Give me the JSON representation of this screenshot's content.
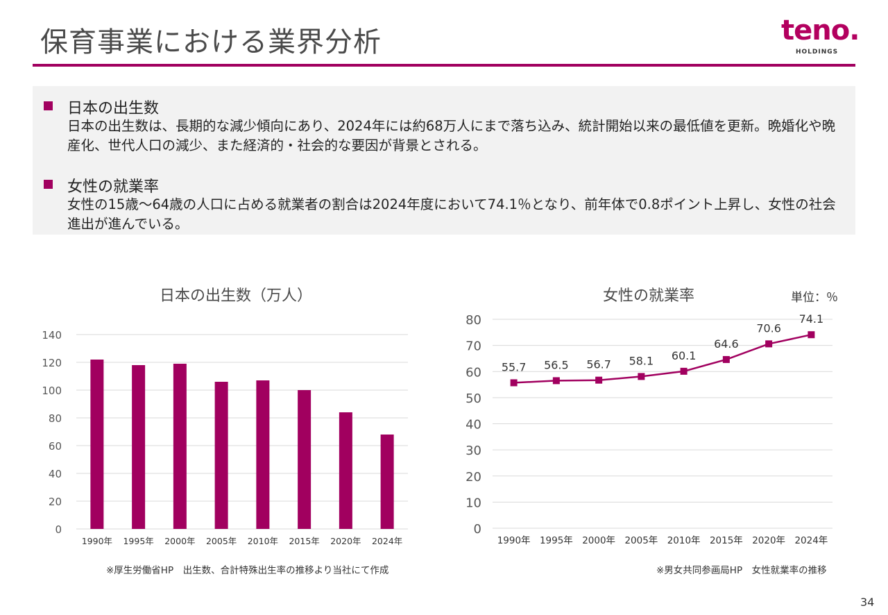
{
  "page": {
    "title": "保育事業における業界分析",
    "page_number": "34",
    "accent_color": "#a1005f"
  },
  "logo": {
    "word": "teno.",
    "sub": "HOLDINGS"
  },
  "sections": [
    {
      "title": "日本の出生数",
      "body": "日本の出生数は、長期的な減少傾向にあり、2024年には約68万人にまで落ち込み、統計開始以来の最低値を更新。晩婚化や晩産化、世代人口の減少、また経済的・社会的な要因が背景とされる。"
    },
    {
      "title": "女性の就業率",
      "body": "女性の15歳～64歳の人口に占める就業者の割合は2024年度において74.1％となり、前年体で0.8ポイント上昇し、女性の社会進出が進んでいる。"
    }
  ],
  "charts": {
    "births": {
      "source": "※厚生労働省HP　出生数、合計特殊出生率の推移より当社にて作成"
    },
    "employment": {
      "unit_label": "単位：％",
      "source": "※男女共同参画局HP　女性就業率の推移"
    }
  },
  "chart_data": [
    {
      "type": "bar",
      "title": "日本の出生数（万人）",
      "categories": [
        "1990年",
        "1995年",
        "2000年",
        "2005年",
        "2010年",
        "2015年",
        "2020年",
        "2024年"
      ],
      "values": [
        122,
        118,
        119,
        106,
        107,
        100,
        84,
        68
      ],
      "ylim": [
        0,
        140
      ],
      "yticks": [
        0,
        20,
        40,
        60,
        80,
        100,
        120,
        140
      ],
      "xlabel": "",
      "ylabel": "",
      "grid": true,
      "color": "#a1005f"
    },
    {
      "type": "line",
      "title": "女性の就業率",
      "categories": [
        "1990年",
        "1995年",
        "2000年",
        "2005年",
        "2010年",
        "2015年",
        "2020年",
        "2024年"
      ],
      "values": [
        55.7,
        56.5,
        56.7,
        58.1,
        60.1,
        64.6,
        70.6,
        74.1
      ],
      "data_labels": [
        "55.7",
        "56.5",
        "56.7",
        "58.1",
        "60.1",
        "64.6",
        "70.6",
        "74.1"
      ],
      "ylim": [
        0,
        80
      ],
      "yticks": [
        0,
        10,
        20,
        30,
        40,
        50,
        60,
        70,
        80
      ],
      "xlabel": "",
      "ylabel": "",
      "grid": true,
      "color": "#a1005f"
    }
  ]
}
